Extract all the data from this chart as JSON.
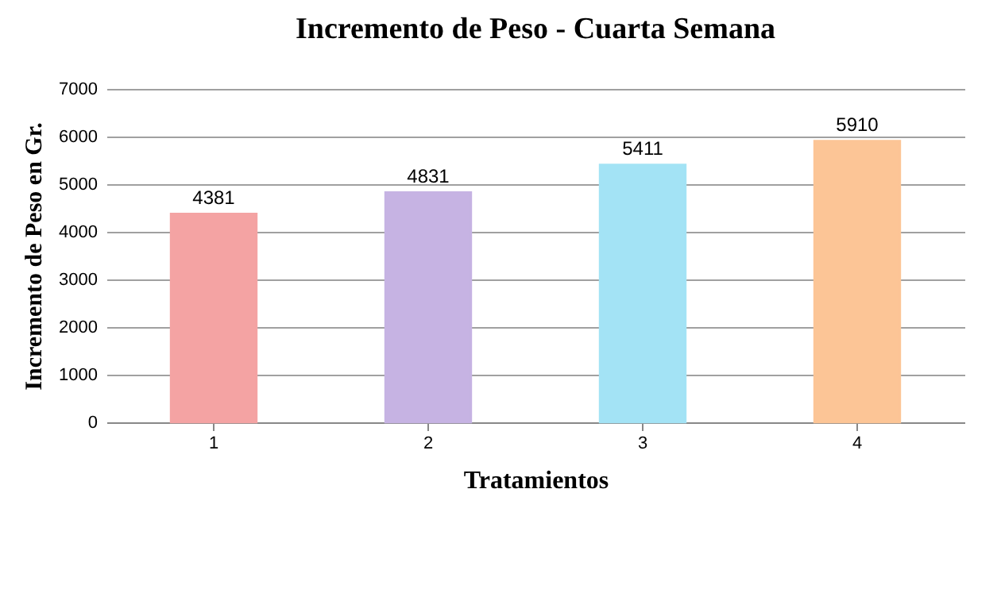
{
  "chart_data": {
    "type": "bar",
    "title": "Incremento de Peso - Cuarta Semana",
    "xlabel": "Tratamientos",
    "ylabel": "Incremento de Peso en Gr.",
    "categories": [
      "1",
      "2",
      "3",
      "4"
    ],
    "values": [
      4381,
      4831,
      5411,
      5910
    ],
    "colors": [
      "#f4a3a3",
      "#c6b3e3",
      "#a3e3f5",
      "#fcc596"
    ],
    "ylim": [
      0,
      7000
    ],
    "yticks": [
      0,
      1000,
      2000,
      3000,
      4000,
      5000,
      6000,
      7000
    ],
    "grid": "y",
    "data_labels": true
  }
}
